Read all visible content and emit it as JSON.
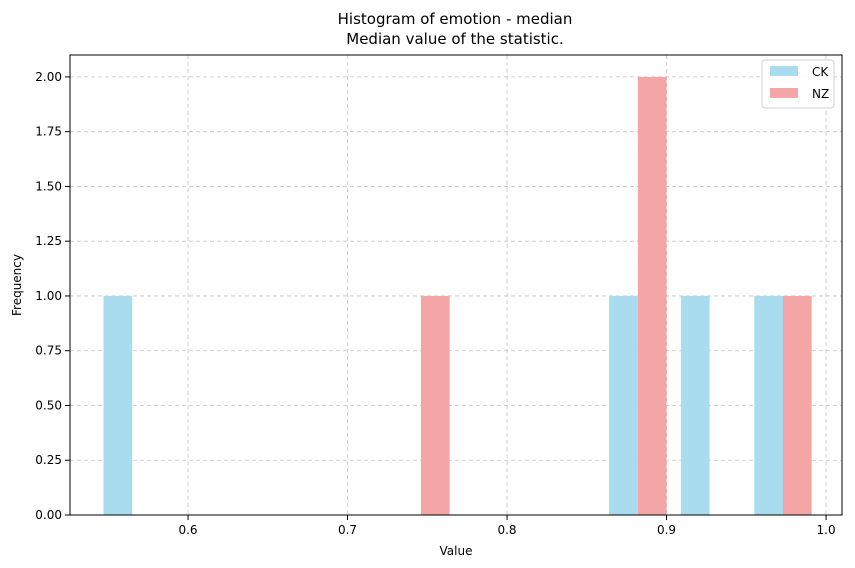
{
  "chart_data": {
    "type": "bar",
    "title": "Histogram of emotion - median",
    "subtitle": "Median value of the statistic.",
    "xlabel": "Value",
    "ylabel": "Frequency",
    "xlim": [
      0.526,
      1.01
    ],
    "ylim": [
      0,
      2.1
    ],
    "xticks": [
      0.6,
      0.7,
      0.8,
      0.9,
      1.0
    ],
    "xtick_labels": [
      "0.6",
      "0.7",
      "0.8",
      "0.9",
      "1.0"
    ],
    "yticks": [
      0.0,
      0.25,
      0.5,
      0.75,
      1.0,
      1.25,
      1.5,
      1.75,
      2.0
    ],
    "ytick_labels": [
      "0.00",
      "0.25",
      "0.50",
      "0.75",
      "1.00",
      "1.25",
      "1.50",
      "1.75",
      "2.00"
    ],
    "grid": true,
    "legend_position": "top-right",
    "series": [
      {
        "name": "CK",
        "color": "#a8dcee",
        "bars": [
          {
            "x0": 0.547,
            "x1": 0.565,
            "value": 1
          },
          {
            "x0": 0.864,
            "x1": 0.882,
            "value": 1
          },
          {
            "x0": 0.909,
            "x1": 0.927,
            "value": 1
          },
          {
            "x0": 0.955,
            "x1": 0.973,
            "value": 1
          }
        ]
      },
      {
        "name": "NZ",
        "color": "#f4a6a6",
        "bars": [
          {
            "x0": 0.746,
            "x1": 0.764,
            "value": 1
          },
          {
            "x0": 0.882,
            "x1": 0.9,
            "value": 2
          },
          {
            "x0": 0.973,
            "x1": 0.991,
            "value": 1
          }
        ]
      }
    ]
  }
}
